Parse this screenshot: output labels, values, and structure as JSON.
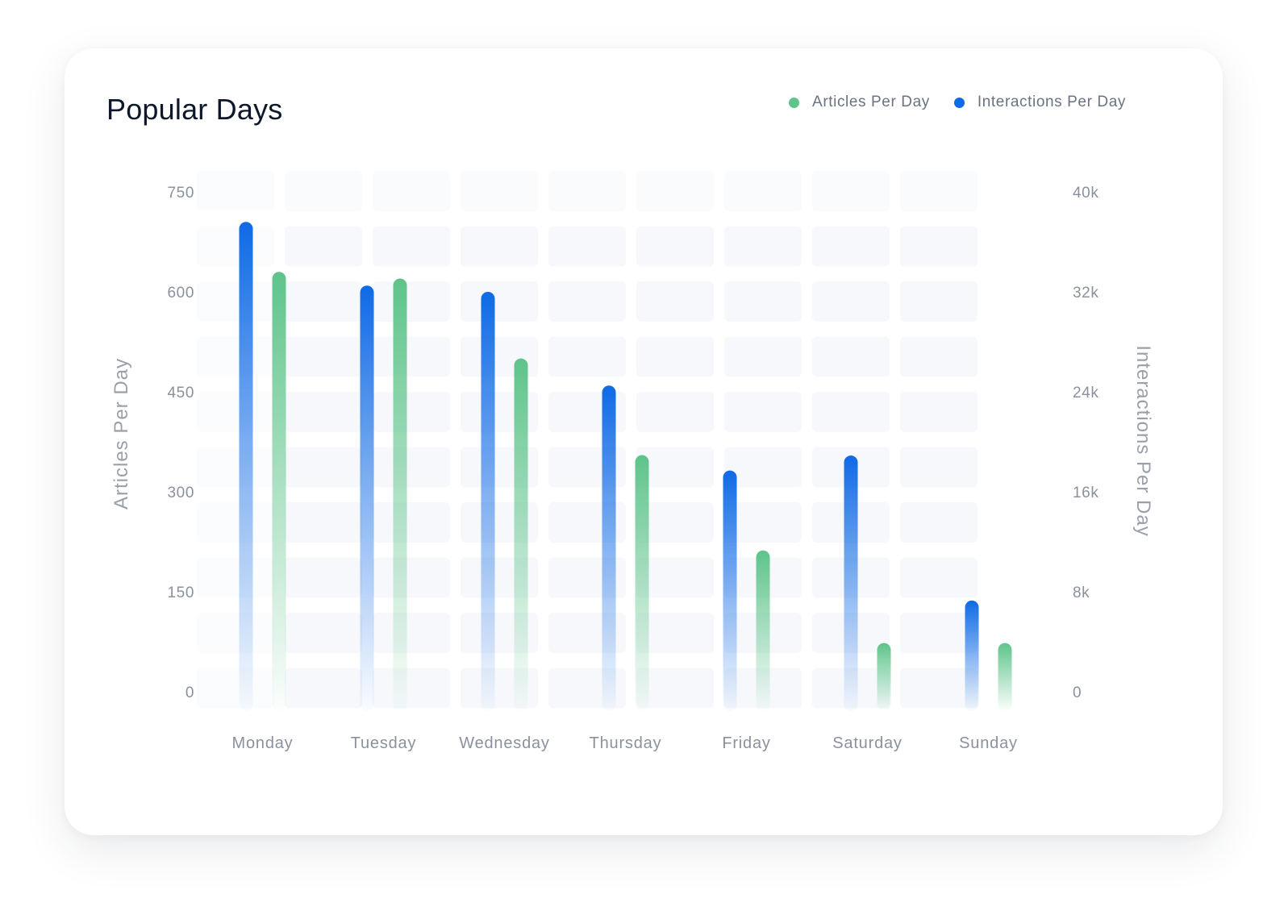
{
  "card": {
    "title": "Popular Days"
  },
  "legend": [
    {
      "label": "Articles Per Day",
      "color": "#5ec48a"
    },
    {
      "label": "Interactions Per Day",
      "color": "#0f6ae6"
    }
  ],
  "chart_data": {
    "type": "bar",
    "title": "Popular Days",
    "categories": [
      "Monday",
      "Tuesday",
      "Wednesday",
      "Thursday",
      "Friday",
      "Saturday",
      "Sunday"
    ],
    "series": [
      {
        "name": "Interactions Per Day",
        "axis": "right",
        "color": "#0f6ae6",
        "values": [
          37600,
          32500,
          32000,
          24500,
          17700,
          18900,
          7300
        ]
      },
      {
        "name": "Articles Per Day",
        "axis": "left",
        "color": "#5ec48a",
        "values": [
          630,
          620,
          500,
          355,
          212,
          73,
          73
        ]
      }
    ],
    "ylabel": "Articles Per Day",
    "ylabel_right": "Interactions Per Day",
    "ylim": [
      0,
      750
    ],
    "ylim_right": [
      0,
      40000
    ],
    "yticks": [
      "0",
      "150",
      "300",
      "450",
      "600",
      "750"
    ],
    "yticks_right": [
      "0",
      "8k",
      "16k",
      "24k",
      "32k",
      "40k"
    ],
    "legend_position": "top-right",
    "grid": "faint tiled background"
  }
}
